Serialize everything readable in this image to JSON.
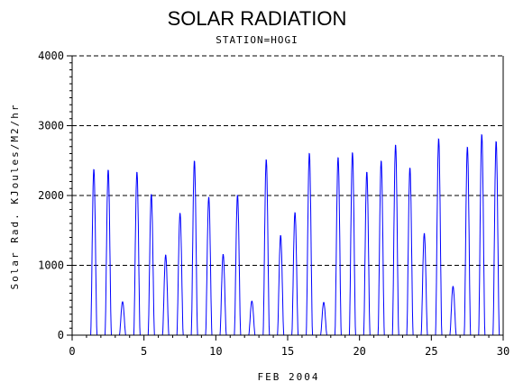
{
  "chart_data": {
    "type": "line",
    "title": "SOLAR RADIATION",
    "subtitle": "STATION=HOGI",
    "xlabel": "FEB 2004",
    "ylabel": "Solar Rad. KJoules/M2/hr",
    "xlim": [
      0,
      30
    ],
    "ylim": [
      0,
      4000
    ],
    "x_ticks": [
      "0",
      "5",
      "10",
      "15",
      "20",
      "25",
      "30"
    ],
    "y_ticks": [
      "0",
      "1000",
      "2000",
      "3000",
      "4000"
    ],
    "grid": "horizontal dashed at y-ticks",
    "line_color": "#0000ff",
    "daily_peaks": [
      {
        "day": 1,
        "peak": 2380
      },
      {
        "day": 2,
        "peak": 2370
      },
      {
        "day": 3,
        "peak": 480
      },
      {
        "day": 4,
        "peak": 2340
      },
      {
        "day": 5,
        "peak": 2020
      },
      {
        "day": 6,
        "peak": 1150
      },
      {
        "day": 7,
        "peak": 1750
      },
      {
        "day": 8,
        "peak": 2500
      },
      {
        "day": 9,
        "peak": 1980
      },
      {
        "day": 10,
        "peak": 1160
      },
      {
        "day": 11,
        "peak": 2010
      },
      {
        "day": 12,
        "peak": 490
      },
      {
        "day": 13,
        "peak": 2520
      },
      {
        "day": 14,
        "peak": 1430
      },
      {
        "day": 15,
        "peak": 1760
      },
      {
        "day": 16,
        "peak": 2610
      },
      {
        "day": 17,
        "peak": 470
      },
      {
        "day": 18,
        "peak": 2550
      },
      {
        "day": 19,
        "peak": 2620
      },
      {
        "day": 20,
        "peak": 2340
      },
      {
        "day": 21,
        "peak": 2500
      },
      {
        "day": 22,
        "peak": 2730
      },
      {
        "day": 23,
        "peak": 2400
      },
      {
        "day": 24,
        "peak": 1460
      },
      {
        "day": 25,
        "peak": 2820
      },
      {
        "day": 26,
        "peak": 700
      },
      {
        "day": 27,
        "peak": 2700
      },
      {
        "day": 28,
        "peak": 2880
      },
      {
        "day": 29,
        "peak": 2780
      }
    ]
  }
}
